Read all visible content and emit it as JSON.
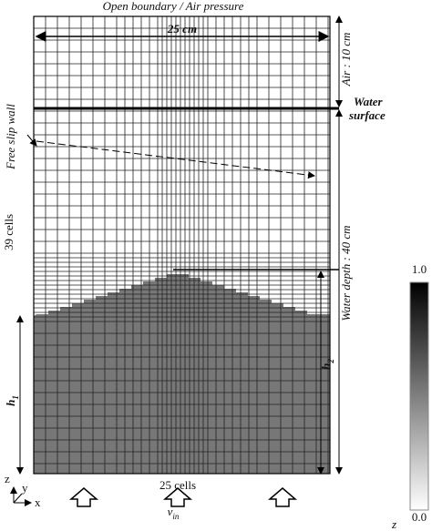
{
  "header": {
    "title": "Open boundary / Air pressure"
  },
  "dimensions": {
    "width": "25 cm",
    "air": "Air : 10 cm",
    "water_depth": "Water depth : 40 cm",
    "cells_x": "25 cells",
    "cells_y": "39 cells"
  },
  "labels": {
    "water_surface_line1": "Water",
    "water_surface_line2": "surface",
    "free_slip_wall": "Free slip wall",
    "h1": {
      "base": "h",
      "sub": "1"
    },
    "h2": {
      "base": "h",
      "sub": "2"
    },
    "v_in": {
      "base": "v",
      "sub": "in"
    }
  },
  "colorbar": {
    "max": "1.0",
    "min": "0.0",
    "variable": "z"
  },
  "axes": {
    "z": "z",
    "y": "y",
    "x": "x"
  }
}
